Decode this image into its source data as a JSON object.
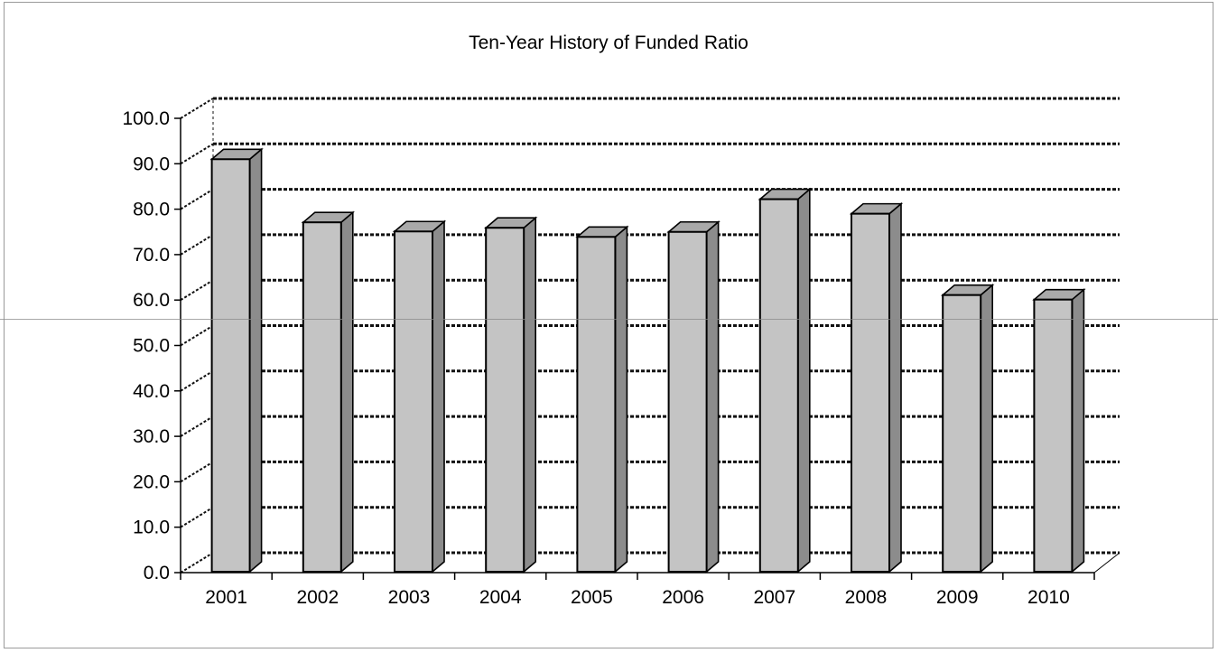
{
  "chart_data": {
    "type": "bar",
    "title": "Ten-Year History of Funded Ratio",
    "xlabel": "",
    "ylabel": "",
    "categories": [
      "2001",
      "2002",
      "2003",
      "2004",
      "2005",
      "2006",
      "2007",
      "2008",
      "2009",
      "2010"
    ],
    "values": [
      91.0,
      77.1,
      75.1,
      75.9,
      73.9,
      75.0,
      82.2,
      79.0,
      61.1,
      60.1
    ],
    "ylim": [
      0,
      100
    ],
    "yticks": [
      "0.0",
      "10.0",
      "20.0",
      "30.0",
      "40.0",
      "50.0",
      "60.0",
      "70.0",
      "80.0",
      "90.0",
      "100.0"
    ],
    "grid": true,
    "legend": "none",
    "colors": {
      "bar_front": "#c4c4c4",
      "bar_side": "#8c8c8c",
      "bar_top": "#a9a9a9",
      "bar_edge": "#000000",
      "gridline": "#111111",
      "axis": "#000000"
    }
  }
}
